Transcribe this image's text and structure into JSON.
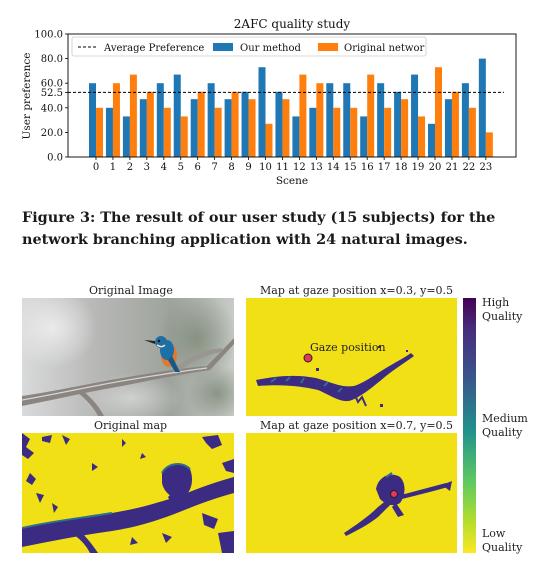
{
  "chart_data": {
    "type": "bar",
    "title": "2AFC quality study",
    "xlabel": "Scene",
    "ylabel": "User preference",
    "ylim": [
      0,
      100
    ],
    "yticks": [
      "0.0",
      "20.0",
      "40.0",
      "52.5",
      "60.0",
      "80.0",
      "100.0"
    ],
    "ytick_values": [
      0,
      20,
      40,
      52.5,
      60,
      80,
      100
    ],
    "categories": [
      "0",
      "1",
      "2",
      "3",
      "4",
      "5",
      "6",
      "7",
      "8",
      "9",
      "10",
      "11",
      "12",
      "13",
      "14",
      "15",
      "16",
      "17",
      "18",
      "19",
      "20",
      "21",
      "22",
      "23"
    ],
    "series": [
      {
        "name": "Our method",
        "color": "#1f77b4",
        "values": [
          60,
          40,
          33,
          47,
          60,
          67,
          47,
          60,
          47,
          53,
          73,
          53,
          33,
          40,
          60,
          60,
          33,
          60,
          53,
          67,
          27,
          47,
          60,
          80
        ]
      },
      {
        "name": "Original networ",
        "color": "#ff7f0e",
        "values": [
          40,
          60,
          67,
          53,
          40,
          33,
          53,
          40,
          53,
          47,
          27,
          47,
          67,
          60,
          40,
          40,
          67,
          40,
          47,
          33,
          73,
          53,
          40,
          20
        ]
      }
    ],
    "reference_line": {
      "name": "Average Preference",
      "value": 52.5,
      "style": "dashed"
    },
    "legend_position": "top",
    "grid": false
  },
  "caption": "Figure 3: The result of our user study (15 subjects) for the network branching application with 24 natural images.",
  "panels": {
    "original_image_title": "Original Image",
    "map1_title": "Map at gaze position x=0.3, y=0.5",
    "original_map_title": "Original map",
    "map2_title": "Map at gaze position x=0.7, y=0.5",
    "gaze_label": "Gaze position"
  },
  "colorbar": {
    "high": "High\nQuality",
    "medium": "Medium\nQuality",
    "low": "Low\nQuality",
    "colors": [
      "#fde725",
      "#5ec962",
      "#21918c",
      "#3b528b",
      "#440154"
    ]
  },
  "map_colors": {
    "low": "#f2e017",
    "high": "#3b2b83",
    "mid": "#2f6f8e",
    "gaze_dot": "#e8365b"
  }
}
